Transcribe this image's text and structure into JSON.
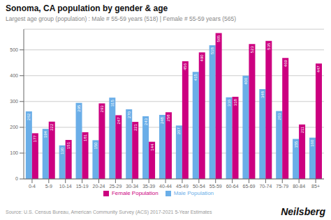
{
  "chart_data": {
    "type": "bar",
    "title": "Sonoma, CA population by gender & age",
    "subtitle": "Largest age group (population) : Male # 55-59 years (518) | Female # 55-59 years (565)",
    "categories": [
      "0-4",
      "5-9",
      "10-14",
      "15-19",
      "20-24",
      "25-29",
      "30-34",
      "35-39",
      "40-44",
      "45-49",
      "50-54",
      "55-59",
      "60-64",
      "65-69",
      "70-74",
      "75-79",
      "80-84",
      "85+"
    ],
    "series": [
      {
        "name": "Male Population",
        "color": "#6aaee8",
        "values": [
          262,
          194,
          130,
          295,
          150,
          315,
          270,
          243,
          248,
          207,
          415,
          518,
          316,
          400,
          348,
          263,
          155,
          160
        ]
      },
      {
        "name": "Female Population",
        "color": "#cc0080",
        "values": [
          177,
          222,
          151,
          181,
          293,
          247,
          221,
          144,
          258,
          456,
          490,
          565,
          318,
          523,
          535,
          469,
          211,
          447
        ]
      }
    ],
    "ylim": [
      0,
      580
    ],
    "yticks": [
      0,
      100,
      200,
      300,
      400,
      500
    ],
    "grid": true,
    "legend": "bottom",
    "data_labels": true,
    "annotations": [
      "Source: U.S. Census Bureau, American Community Survey (ACS) 2017-2021 5-Year Estimates",
      "Neilsberg"
    ]
  }
}
